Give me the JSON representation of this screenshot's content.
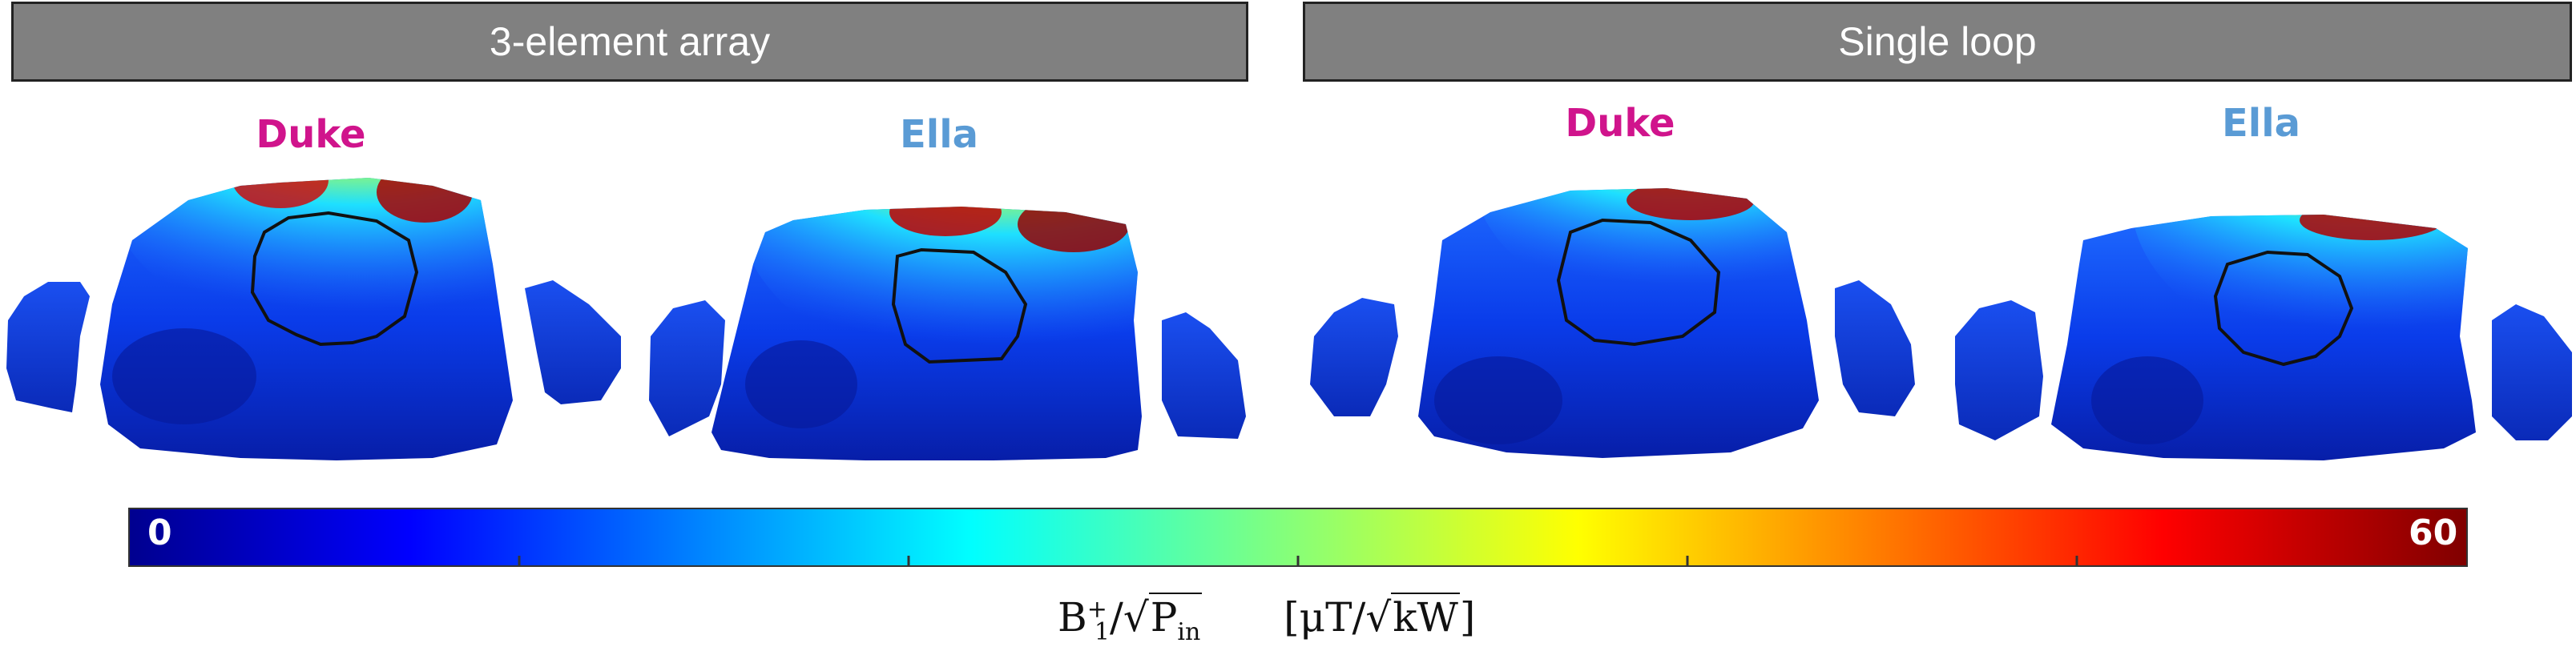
{
  "groups": [
    {
      "title": "3-element array"
    },
    {
      "title": "Single loop"
    }
  ],
  "subjects": [
    {
      "label": "Duke",
      "color": "#d0148c"
    },
    {
      "label": "Ella",
      "color": "#5a9bd5"
    },
    {
      "label": "Duke",
      "color": "#d0148c"
    },
    {
      "label": "Ella",
      "color": "#5a9bd5"
    }
  ],
  "colorbar": {
    "min_label": "0",
    "max_label": "60",
    "colormap": "jet",
    "units_text": {
      "b": "B",
      "sup": "+",
      "sub": "1",
      "slash": "/",
      "sqrt_p": "P",
      "sqrt_p_sub": "in",
      "unit_open": "[",
      "unit_mu": "μT/",
      "unit_kw": "kW",
      "unit_close": "]"
    }
  }
}
